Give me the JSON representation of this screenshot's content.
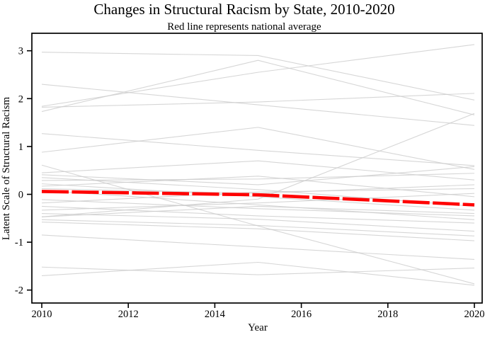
{
  "chart_data": {
    "type": "line",
    "title": "Changes in Structural Racism by State, 2010-2020",
    "subtitle": "Red line represents national average",
    "xlabel": "Year",
    "ylabel": "Latent Scale of Structural Racism",
    "x_ticks": [
      "2010",
      "2012",
      "2014",
      "2016",
      "2018",
      "2020"
    ],
    "x_tick_values": [
      2010,
      2012,
      2014,
      2016,
      2018,
      2020
    ],
    "y_ticks": [
      "3",
      "2",
      "1",
      "0",
      "-1",
      "-2"
    ],
    "y_tick_values": [
      3,
      2,
      1,
      0,
      -1,
      -2
    ],
    "xlim": [
      2009.77,
      2020.18
    ],
    "ylim": [
      -2.27,
      3.37
    ],
    "grid": false,
    "legend_position": "none",
    "colors": {
      "national_average": "#ff0000",
      "state_line": "#cccccc",
      "axis": "#000000"
    },
    "x": [
      2010,
      2015,
      2020
    ],
    "national_average": {
      "name": "National average",
      "values": [
        0.06,
        -0.01,
        -0.22
      ]
    },
    "states": {
      "name": "State trajectories",
      "series": [
        {
          "values": [
            2.97,
            2.9,
            1.97
          ]
        },
        {
          "values": [
            1.73,
            2.8,
            1.66
          ]
        },
        {
          "values": [
            2.3,
            1.87,
            1.44
          ]
        },
        {
          "values": [
            1.84,
            2.55,
            3.13
          ]
        },
        {
          "values": [
            1.82,
            1.93,
            2.11
          ]
        },
        {
          "values": [
            1.27,
            0.92,
            0.6
          ]
        },
        {
          "values": [
            0.88,
            1.4,
            0.52
          ]
        },
        {
          "values": [
            0.61,
            -0.66,
            -1.87
          ]
        },
        {
          "values": [
            0.45,
            0.7,
            0.3
          ]
        },
        {
          "values": [
            0.41,
            0.2,
            0.58
          ]
        },
        {
          "values": [
            0.35,
            0.1,
            -0.25
          ]
        },
        {
          "values": [
            0.29,
            0.32,
            0.44
          ]
        },
        {
          "values": [
            0.22,
            -0.05,
            -0.33
          ]
        },
        {
          "values": [
            0.17,
            0.38,
            -0.05
          ]
        },
        {
          "values": [
            0.12,
            0.02,
            0.2
          ]
        },
        {
          "values": [
            0.08,
            -0.22,
            -0.53
          ]
        },
        {
          "values": [
            -0.11,
            -0.3,
            -0.45
          ]
        },
        {
          "values": [
            -0.18,
            0.05,
            0.12
          ]
        },
        {
          "values": [
            -0.25,
            -0.45,
            -0.6
          ]
        },
        {
          "values": [
            -0.33,
            -0.18,
            0.02
          ]
        },
        {
          "values": [
            -0.4,
            -0.52,
            -0.77
          ]
        },
        {
          "values": [
            -0.47,
            -0.25,
            -0.4
          ]
        },
        {
          "values": [
            -0.47,
            -0.1,
            1.69
          ]
        },
        {
          "values": [
            -0.53,
            -0.65,
            -0.87
          ]
        },
        {
          "values": [
            -0.58,
            -0.72,
            -0.97
          ]
        },
        {
          "values": [
            -0.85,
            -1.1,
            -1.36
          ]
        },
        {
          "values": [
            -1.52,
            -1.68,
            -1.54
          ]
        },
        {
          "values": [
            -1.7,
            -1.42,
            -1.9
          ]
        }
      ]
    }
  }
}
